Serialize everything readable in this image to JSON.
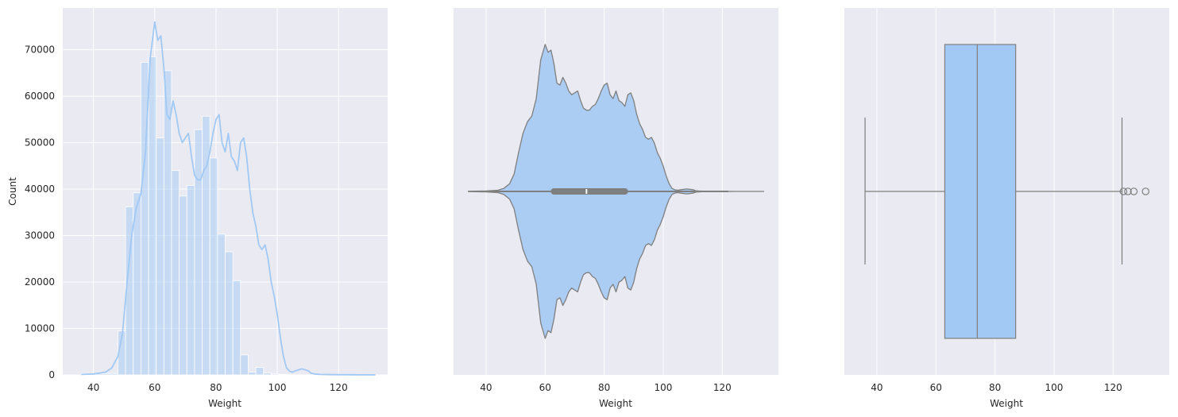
{
  "colors": {
    "background": "#eaeaf2",
    "grid": "#ffffff",
    "fill": "#a1c9f4",
    "violin_fill": "#abcdf4",
    "edge": "#7f7f7f"
  },
  "chart_data": [
    {
      "type": "histogram",
      "xlabel": "Weight",
      "ylabel": "Count",
      "xlim": [
        30,
        136
      ],
      "ylim": [
        0,
        79000
      ],
      "xticks": [
        40,
        60,
        80,
        100,
        120
      ],
      "yticks": [
        0,
        10000,
        20000,
        30000,
        40000,
        50000,
        60000,
        70000
      ],
      "grid": true,
      "bin_edges": [
        36,
        48,
        50.5,
        53,
        55.5,
        58,
        60.5,
        63,
        65.5,
        68,
        70.5,
        73,
        75.5,
        78,
        80.5,
        83,
        85.5,
        88,
        90.5,
        93,
        95.5,
        98,
        100.5,
        103,
        105.5,
        108,
        110.5,
        113,
        132
      ],
      "counts": [
        300,
        9500,
        36200,
        39200,
        67300,
        68500,
        51000,
        65500,
        44000,
        38500,
        40800,
        52800,
        55700,
        46700,
        30300,
        26500,
        20300,
        4300,
        600,
        1600,
        400,
        200,
        100,
        50,
        30,
        20,
        10,
        0
      ],
      "kde": {
        "x": [
          36,
          40,
          44,
          46,
          48,
          49.5,
          51,
          52.5,
          54,
          55.5,
          57,
          58.5,
          60,
          61,
          62,
          63,
          64,
          65,
          66,
          67,
          68,
          69,
          70,
          71,
          72,
          73,
          74,
          75,
          76,
          77,
          78,
          79,
          80,
          81,
          82,
          83,
          84,
          85,
          86,
          87,
          88,
          89,
          90,
          91,
          92,
          93,
          94,
          95,
          96,
          97,
          98,
          99,
          100,
          101,
          102,
          103,
          104,
          105,
          106,
          108,
          110,
          111,
          112,
          114,
          118,
          124,
          132
        ],
        "y": [
          100,
          200,
          600,
          1500,
          4000,
          9000,
          20000,
          30000,
          36000,
          39000,
          48000,
          68000,
          76000,
          72000,
          73000,
          66000,
          56000,
          55000,
          59000,
          56000,
          52000,
          50000,
          51000,
          52000,
          47000,
          43000,
          42000,
          42000,
          44000,
          45000,
          48000,
          52000,
          55000,
          56000,
          50000,
          48000,
          52000,
          47000,
          46000,
          44000,
          50000,
          51000,
          47000,
          40000,
          35000,
          32000,
          28000,
          27000,
          28000,
          25000,
          20000,
          17000,
          13000,
          8000,
          4000,
          1500,
          800,
          600,
          900,
          1300,
          900,
          400,
          200,
          100,
          50,
          30,
          0
        ]
      }
    },
    {
      "type": "violin",
      "xlabel": "Weight",
      "xlim": [
        29,
        139
      ],
      "xticks": [
        40,
        60,
        80,
        100,
        120
      ],
      "grid": true,
      "density": {
        "x": [
          34,
          40,
          44,
          46,
          48,
          49.5,
          51,
          52.5,
          54,
          55.5,
          57,
          58.5,
          60,
          61,
          62,
          63,
          64,
          65,
          66,
          67,
          68,
          69,
          70,
          71,
          72,
          73,
          74,
          75,
          76,
          77,
          78,
          79,
          80,
          81,
          82,
          83,
          84,
          85,
          86,
          87,
          88,
          89,
          90,
          91,
          92,
          93,
          94,
          95,
          96,
          97,
          98,
          99,
          100,
          101,
          102,
          103,
          104,
          105,
          106,
          108,
          110,
          111,
          112,
          114,
          118,
          124,
          134
        ],
        "y": [
          0.001,
          0.003,
          0.008,
          0.02,
          0.053,
          0.118,
          0.263,
          0.395,
          0.474,
          0.513,
          0.632,
          0.895,
          1.0,
          0.947,
          0.961,
          0.868,
          0.737,
          0.724,
          0.776,
          0.737,
          0.684,
          0.658,
          0.671,
          0.684,
          0.618,
          0.566,
          0.553,
          0.553,
          0.579,
          0.592,
          0.632,
          0.684,
          0.724,
          0.737,
          0.658,
          0.632,
          0.684,
          0.618,
          0.605,
          0.579,
          0.658,
          0.671,
          0.618,
          0.526,
          0.461,
          0.421,
          0.368,
          0.355,
          0.368,
          0.329,
          0.263,
          0.224,
          0.171,
          0.105,
          0.053,
          0.02,
          0.011,
          0.008,
          0.012,
          0.017,
          0.012,
          0.005,
          0.003,
          0.001,
          0.001,
          0.0,
          0.0
        ]
      },
      "whisker": [
        36,
        122
      ],
      "quartiles": [
        63,
        74,
        87
      ]
    },
    {
      "type": "box",
      "xlabel": "Weight",
      "xlim": [
        29,
        139
      ],
      "xticks": [
        40,
        60,
        80,
        100,
        120
      ],
      "grid": true,
      "whisker_low": 36,
      "q1": 63,
      "median": 74,
      "q3": 87,
      "whisker_high": 123,
      "outliers": [
        123.5,
        125,
        127,
        131
      ]
    }
  ]
}
